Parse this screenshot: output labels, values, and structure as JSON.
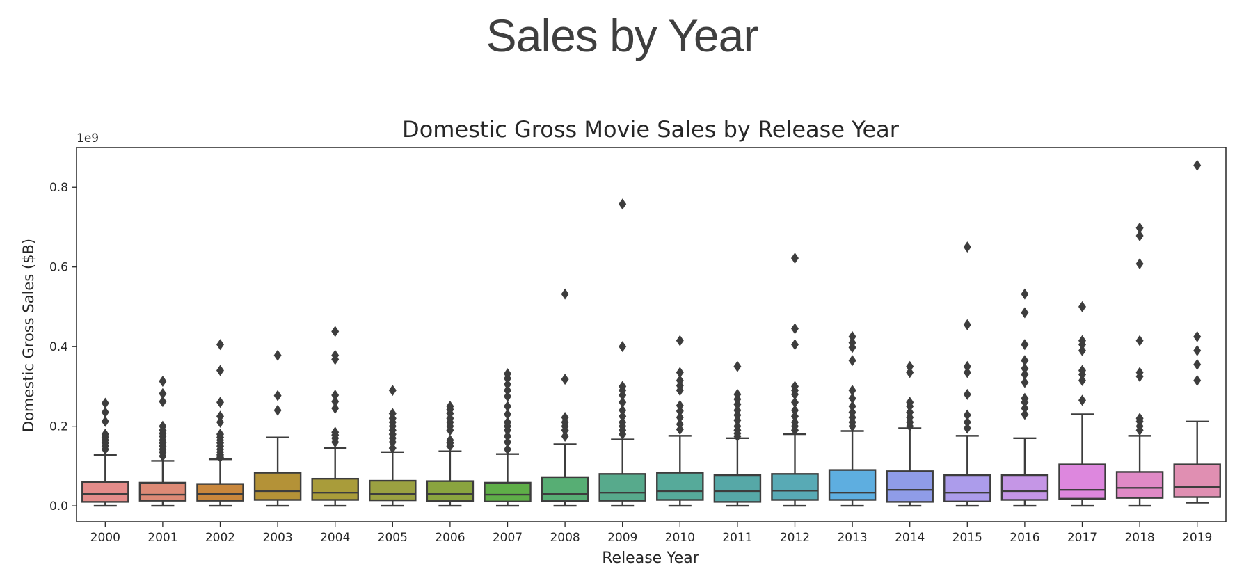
{
  "slide": {
    "title": "Sales by Year"
  },
  "chart_data": {
    "type": "box",
    "title": "Domestic Gross Movie Sales by Release Year",
    "xlabel": "Release Year",
    "ylabel": "Domestic Gross Sales ($B)",
    "y_offset_label": "1e9",
    "ylim": [
      -0.04,
      0.9
    ],
    "y_ticks": [
      0.0,
      0.2,
      0.4,
      0.6,
      0.8
    ],
    "y_tick_labels": [
      "0.0",
      "0.2",
      "0.4",
      "0.6",
      "0.8"
    ],
    "grid": false,
    "categories": [
      "2000",
      "2001",
      "2002",
      "2003",
      "2004",
      "2005",
      "2006",
      "2007",
      "2008",
      "2009",
      "2010",
      "2011",
      "2012",
      "2013",
      "2014",
      "2015",
      "2016",
      "2017",
      "2018",
      "2019"
    ],
    "colors": [
      "#e48c8a",
      "#dd8a76",
      "#c9873c",
      "#b49237",
      "#a99c3a",
      "#9ba141",
      "#8aa43f",
      "#5fae48",
      "#57ae74",
      "#57aa8c",
      "#56aa9a",
      "#56a8a7",
      "#58aab5",
      "#5eaee0",
      "#8f9ce8",
      "#ac9ceb",
      "#c596e6",
      "#dd87de",
      "#e08ac6",
      "#e08fb2"
    ],
    "boxes": [
      {
        "year": "2000",
        "whislo": 0.0,
        "q1": 0.01,
        "med": 0.03,
        "q3": 0.06,
        "whishi": 0.128,
        "fliers": [
          0.142,
          0.15,
          0.158,
          0.165,
          0.172,
          0.18,
          0.212,
          0.235,
          0.258
        ]
      },
      {
        "year": "2001",
        "whislo": 0.0,
        "q1": 0.013,
        "med": 0.028,
        "q3": 0.058,
        "whishi": 0.113,
        "fliers": [
          0.125,
          0.135,
          0.142,
          0.15,
          0.158,
          0.165,
          0.175,
          0.182,
          0.19,
          0.2,
          0.262,
          0.282,
          0.313
        ]
      },
      {
        "year": "2002",
        "whislo": 0.0,
        "q1": 0.013,
        "med": 0.03,
        "q3": 0.055,
        "whishi": 0.117,
        "fliers": [
          0.122,
          0.128,
          0.135,
          0.142,
          0.15,
          0.158,
          0.165,
          0.172,
          0.18,
          0.21,
          0.225,
          0.26,
          0.34,
          0.405
        ]
      },
      {
        "year": "2003",
        "whislo": 0.0,
        "q1": 0.015,
        "med": 0.037,
        "q3": 0.083,
        "whishi": 0.172,
        "fliers": [
          0.24,
          0.277,
          0.378
        ]
      },
      {
        "year": "2004",
        "whislo": 0.0,
        "q1": 0.015,
        "med": 0.033,
        "q3": 0.068,
        "whishi": 0.145,
        "fliers": [
          0.16,
          0.17,
          0.178,
          0.185,
          0.245,
          0.262,
          0.278,
          0.368,
          0.378,
          0.438
        ]
      },
      {
        "year": "2005",
        "whislo": 0.0,
        "q1": 0.014,
        "med": 0.03,
        "q3": 0.063,
        "whishi": 0.135,
        "fliers": [
          0.145,
          0.16,
          0.17,
          0.18,
          0.19,
          0.2,
          0.21,
          0.22,
          0.232,
          0.29
        ]
      },
      {
        "year": "2006",
        "whislo": 0.0,
        "q1": 0.012,
        "med": 0.03,
        "q3": 0.062,
        "whishi": 0.137,
        "fliers": [
          0.15,
          0.158,
          0.165,
          0.19,
          0.2,
          0.21,
          0.22,
          0.232,
          0.242,
          0.25
        ]
      },
      {
        "year": "2007",
        "whislo": 0.0,
        "q1": 0.011,
        "med": 0.028,
        "q3": 0.058,
        "whishi": 0.13,
        "fliers": [
          0.142,
          0.16,
          0.175,
          0.19,
          0.2,
          0.21,
          0.23,
          0.25,
          0.275,
          0.29,
          0.305,
          0.32,
          0.332
        ]
      },
      {
        "year": "2008",
        "whislo": 0.0,
        "q1": 0.012,
        "med": 0.03,
        "q3": 0.072,
        "whishi": 0.155,
        "fliers": [
          0.175,
          0.19,
          0.2,
          0.21,
          0.222,
          0.318,
          0.532
        ]
      },
      {
        "year": "2009",
        "whislo": 0.0,
        "q1": 0.013,
        "med": 0.033,
        "q3": 0.08,
        "whishi": 0.167,
        "fliers": [
          0.18,
          0.19,
          0.2,
          0.21,
          0.225,
          0.24,
          0.26,
          0.278,
          0.29,
          0.3,
          0.4,
          0.758
        ]
      },
      {
        "year": "2010",
        "whislo": 0.0,
        "q1": 0.015,
        "med": 0.037,
        "q3": 0.083,
        "whishi": 0.176,
        "fliers": [
          0.192,
          0.205,
          0.222,
          0.238,
          0.252,
          0.29,
          0.302,
          0.315,
          0.335,
          0.415
        ]
      },
      {
        "year": "2011",
        "whislo": 0.0,
        "q1": 0.01,
        "med": 0.037,
        "q3": 0.077,
        "whishi": 0.17,
        "fliers": [
          0.175,
          0.182,
          0.19,
          0.2,
          0.215,
          0.228,
          0.24,
          0.255,
          0.268,
          0.28,
          0.35
        ]
      },
      {
        "year": "2012",
        "whislo": 0.0,
        "q1": 0.015,
        "med": 0.038,
        "q3": 0.08,
        "whishi": 0.18,
        "fliers": [
          0.19,
          0.2,
          0.21,
          0.225,
          0.24,
          0.26,
          0.28,
          0.29,
          0.3,
          0.405,
          0.445,
          0.622
        ]
      },
      {
        "year": "2013",
        "whislo": 0.0,
        "q1": 0.015,
        "med": 0.033,
        "q3": 0.09,
        "whishi": 0.188,
        "fliers": [
          0.2,
          0.21,
          0.222,
          0.235,
          0.25,
          0.27,
          0.29,
          0.365,
          0.398,
          0.41,
          0.425
        ]
      },
      {
        "year": "2014",
        "whislo": 0.0,
        "q1": 0.01,
        "med": 0.04,
        "q3": 0.087,
        "whishi": 0.195,
        "fliers": [
          0.2,
          0.21,
          0.222,
          0.235,
          0.25,
          0.26,
          0.335,
          0.35
        ]
      },
      {
        "year": "2015",
        "whislo": 0.0,
        "q1": 0.011,
        "med": 0.033,
        "q3": 0.077,
        "whishi": 0.176,
        "fliers": [
          0.195,
          0.21,
          0.228,
          0.28,
          0.335,
          0.35,
          0.455,
          0.65
        ]
      },
      {
        "year": "2016",
        "whislo": 0.0,
        "q1": 0.015,
        "med": 0.037,
        "q3": 0.077,
        "whishi": 0.17,
        "fliers": [
          0.23,
          0.245,
          0.26,
          0.27,
          0.31,
          0.33,
          0.345,
          0.365,
          0.405,
          0.485,
          0.532
        ]
      },
      {
        "year": "2017",
        "whislo": 0.0,
        "q1": 0.018,
        "med": 0.04,
        "q3": 0.104,
        "whishi": 0.23,
        "fliers": [
          0.265,
          0.315,
          0.33,
          0.34,
          0.39,
          0.405,
          0.415,
          0.5
        ]
      },
      {
        "year": "2018",
        "whislo": 0.0,
        "q1": 0.02,
        "med": 0.045,
        "q3": 0.085,
        "whishi": 0.176,
        "fliers": [
          0.19,
          0.2,
          0.212,
          0.22,
          0.325,
          0.335,
          0.415,
          0.608,
          0.678,
          0.698
        ]
      },
      {
        "year": "2019",
        "whislo": 0.008,
        "q1": 0.022,
        "med": 0.047,
        "q3": 0.104,
        "whishi": 0.212,
        "fliers": [
          0.315,
          0.355,
          0.39,
          0.425,
          0.855
        ]
      }
    ]
  }
}
